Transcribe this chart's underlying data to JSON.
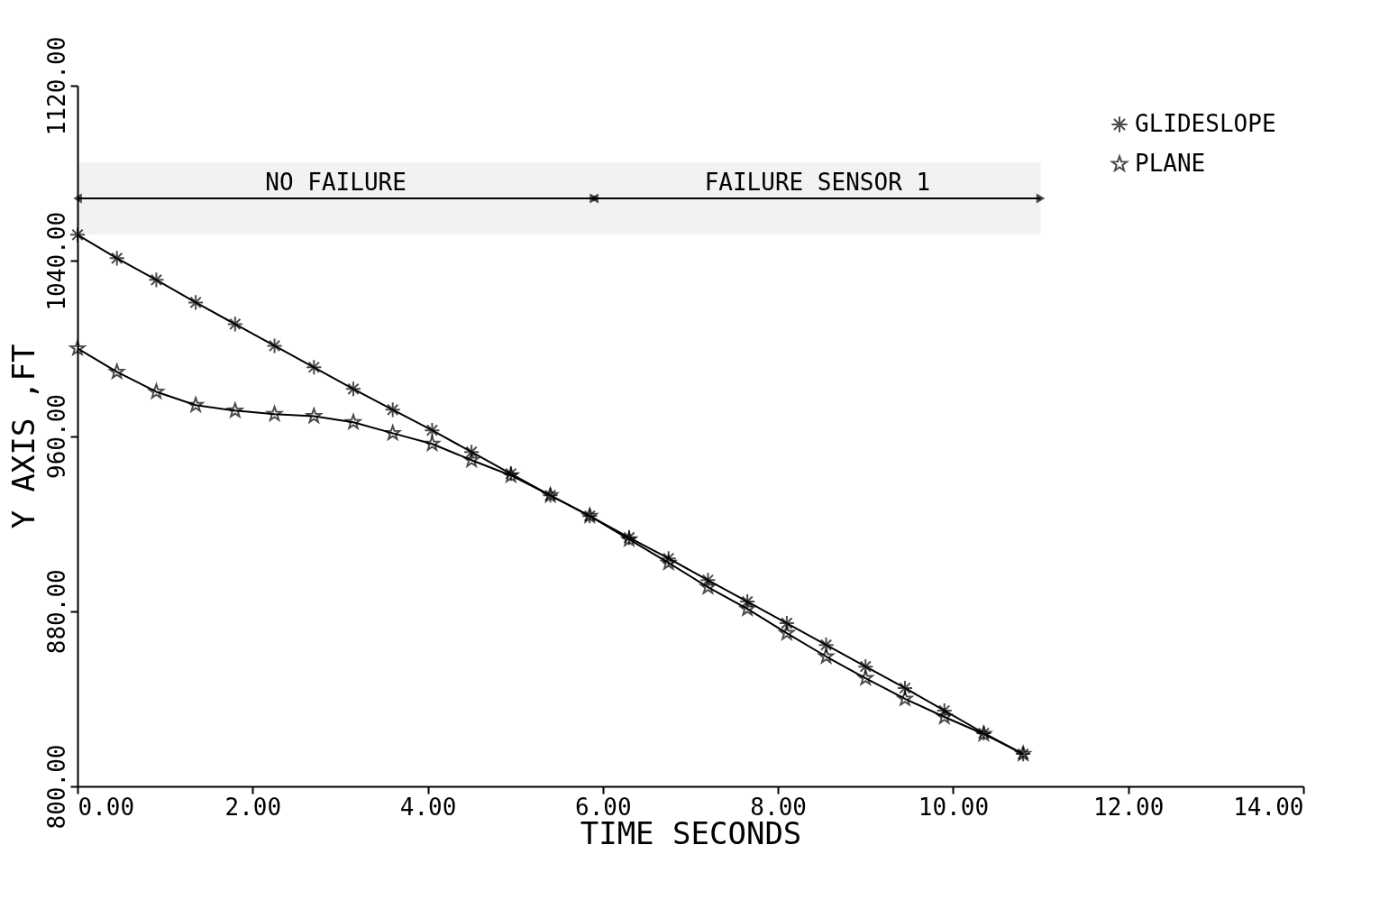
{
  "chart_data": {
    "type": "line",
    "xlabel": "TIME   SECONDS",
    "ylabel": "Y AXIS ,FT",
    "xlim": [
      0,
      14
    ],
    "ylim": [
      800,
      1120
    ],
    "xticks": [
      {
        "value": 0,
        "label": "0.00"
      },
      {
        "value": 2,
        "label": "2.00"
      },
      {
        "value": 4,
        "label": "4.00"
      },
      {
        "value": 6,
        "label": "6.00"
      },
      {
        "value": 8,
        "label": "8.00"
      },
      {
        "value": 10,
        "label": "10.00"
      },
      {
        "value": 12,
        "label": "12.00"
      },
      {
        "value": 14,
        "label": "14.00"
      }
    ],
    "yticks": [
      {
        "value": 800,
        "label": "800.00"
      },
      {
        "value": 880,
        "label": "880.00"
      },
      {
        "value": 960,
        "label": "960.00"
      },
      {
        "value": 1040,
        "label": "1040.00"
      },
      {
        "value": 1120,
        "label": "1120.00"
      }
    ],
    "x": [
      0,
      0.45,
      0.9,
      1.35,
      1.8,
      2.25,
      2.7,
      3.15,
      3.6,
      4.05,
      4.5,
      4.95,
      5.4,
      5.85,
      6.3,
      6.75,
      7.2,
      7.65,
      8.1,
      8.55,
      9.0,
      9.45,
      9.9,
      10.35,
      10.8
    ],
    "series": [
      {
        "name": "GLIDESLOPE",
        "color": "#000000",
        "marker": "cross",
        "values": [
          1051.9,
          1041.2,
          1031.3,
          1021.0,
          1011.1,
          1001.2,
          991.4,
          981.5,
          972.0,
          962.6,
          952.7,
          942.8,
          932.9,
          923.5,
          913.6,
          904.1,
          894.2,
          884.4,
          874.5,
          864.6,
          854.7,
          844.9,
          834.6,
          824.3,
          814.8
        ]
      },
      {
        "name": "PLANE",
        "color": "#000000",
        "marker": "star",
        "values": [
          1000.0,
          989.3,
          980.2,
          974.1,
          971.6,
          970.0,
          969.1,
          966.3,
          961.3,
          956.4,
          949.0,
          942.0,
          932.9,
          923.5,
          912.8,
          902.1,
          891.0,
          881.1,
          870.0,
          859.3,
          849.4,
          840.0,
          831.7,
          823.9,
          814.8
        ]
      }
    ],
    "bands": [
      {
        "axis": "x",
        "from": 0,
        "to": 5.9,
        "label": "NO FAILURE"
      },
      {
        "axis": "x",
        "from": 5.9,
        "to": 11.0,
        "label": "FAILURE SENSOR 1"
      }
    ],
    "legend": "top right",
    "grid": false
  }
}
